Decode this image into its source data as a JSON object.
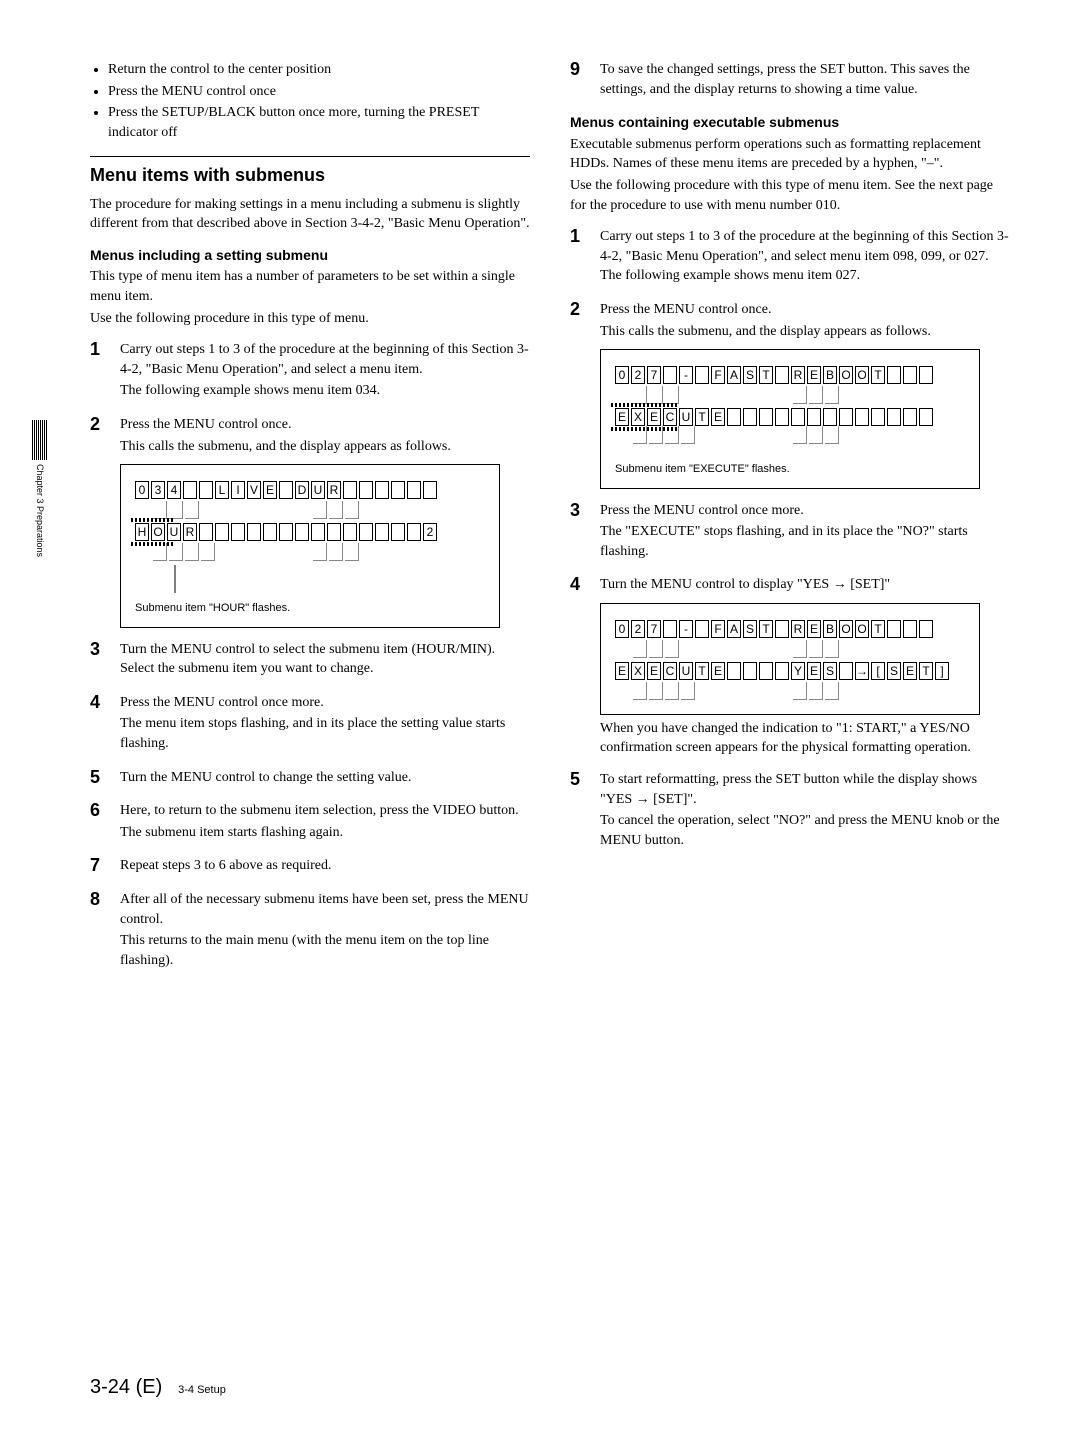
{
  "sideLabel": "Chapter 3  Preparations",
  "left": {
    "bullets": [
      "Return the control to the center position",
      "Press the MENU control once",
      "Press the SETUP/BLACK button once more, turning the PRESET indicator off"
    ],
    "sectionTitle": "Menu items with submenus",
    "sectionIntro": "The procedure for making settings in a menu including a submenu is slightly different from that described above in Section 3-4-2, \"Basic Menu Operation\".",
    "subhead1": "Menus including a setting submenu",
    "sub1p1": "This type of menu item has a number of parameters to be set within a single menu item.",
    "sub1p2": "Use the following procedure in this type of menu.",
    "steps": {
      "s1": "Carry out steps 1 to 3 of the procedure at the beginning of this Section 3-4-2, \"Basic Menu Operation\", and select a menu item.",
      "s1b": "The following example shows menu item 034.",
      "s2": "Press the MENU control once.",
      "s2b": "This calls the submenu, and the display appears as follows.",
      "lcd1_caption": "Submenu item \"HOUR\" flashes.",
      "s3": "Turn the MENU control to select the submenu item (HOUR/MIN). Select the submenu item you want to change.",
      "s4": "Press the MENU control once more.",
      "s4b": "The menu item stops flashing, and in its place the setting value starts flashing.",
      "s5": "Turn the MENU control to change the setting value.",
      "s6": "Here, to return to the submenu item selection, press the VIDEO button.",
      "s6b": "The submenu item starts flashing again.",
      "s7": "Repeat steps 3 to 6 above as required.",
      "s8": "After all of the necessary submenu items have been set, press the MENU control.",
      "s8b": "This returns to the main menu (with the menu item on the top line flashing)."
    },
    "lcd1": {
      "row1": [
        "0",
        "3",
        "4",
        "",
        "",
        "L",
        "I",
        "V",
        "E",
        "",
        "D",
        "U",
        "R",
        "",
        "",
        "",
        "",
        "",
        ""
      ],
      "row2": [
        "H",
        "O",
        "U",
        "R",
        "",
        "",
        "",
        "",
        "",
        "",
        "",
        "",
        "",
        "",
        "",
        "",
        "",
        "",
        "2"
      ]
    }
  },
  "right": {
    "s9": "To save the changed settings, press the SET button. This saves the settings, and the display returns to showing a time value.",
    "subhead2": "Menus containing executable submenus",
    "p2a": "Executable submenus perform operations such as formatting replacement HDDs. Names of these menu items are preceded by a hyphen, \"–\".",
    "p2b": "Use the following procedure with this type of menu item. See the next page for the procedure to use with menu number 010.",
    "steps": {
      "s1": "Carry out steps 1 to 3 of the procedure at the beginning of this Section 3-4-2, \"Basic Menu Operation\", and select menu item 098, 099, or 027. The following example shows menu item 027.",
      "s2": "Press the MENU control once.",
      "s2b": "This calls the submenu, and the display appears as follows.",
      "lcd2_caption": "Submenu item \"EXECUTE\" flashes.",
      "s3": "Press the MENU control once more.",
      "s3b": "The \"EXECUTE\" stops flashing, and in its place the \"NO?\" starts flashing.",
      "s4": "Turn the MENU control to display \"YES → [SET]\"",
      "s4post": "When you have changed the indication to \"1: START,\" a YES/NO confirmation screen appears for the physical formatting operation.",
      "s5": "To start reformatting, press the SET button while the display shows \"YES → [SET]\".",
      "s5b": "To cancel the operation, select \"NO?\" and press the MENU knob or the MENU button."
    },
    "lcd2": {
      "row1": [
        "0",
        "2",
        "7",
        "",
        "-",
        "",
        "F",
        "A",
        "S",
        "T",
        "",
        "R",
        "E",
        "B",
        "O",
        "O",
        "T",
        "",
        "",
        ""
      ],
      "row2": [
        "E",
        "X",
        "E",
        "C",
        "U",
        "T",
        "E",
        "",
        "",
        "",
        "",
        "",
        "",
        "",
        "",
        "",
        "",
        "",
        "",
        ""
      ]
    },
    "lcd3": {
      "row1": [
        "0",
        "2",
        "7",
        "",
        "-",
        "",
        "F",
        "A",
        "S",
        "T",
        "",
        "R",
        "E",
        "B",
        "O",
        "O",
        "T",
        "",
        "",
        ""
      ],
      "row2": [
        "E",
        "X",
        "E",
        "C",
        "U",
        "T",
        "E",
        "",
        "",
        "",
        "",
        "Y",
        "E",
        "S",
        "",
        "→",
        "[",
        "S",
        "E",
        "T",
        "]"
      ]
    }
  },
  "footer": {
    "page": "3-24 (E)",
    "section": "3-4 Setup"
  }
}
